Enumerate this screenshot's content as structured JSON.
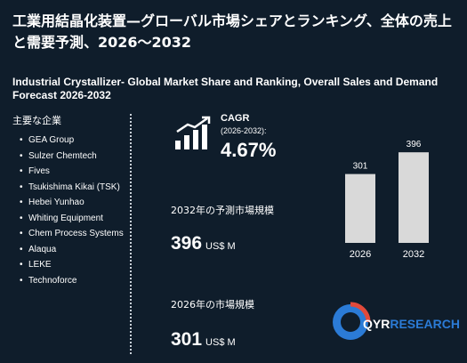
{
  "title_jp": "工業用結晶化装置—グローバル市場シェアとランキング、全体の売上と需要予測、2026〜2032",
  "title_en": "Industrial Crystallizer- Global Market Share and Ranking, Overall Sales and Demand Forecast 2026-2032",
  "players_heading": "主要な企業",
  "players": [
    "GEA Group",
    "Sulzer Chemtech",
    "Fives",
    "Tsukishima Kikai (TSK)",
    "Hebei Yunhao",
    "Whiting Equipment",
    "Chem Process Systems",
    "Alaqua",
    "LEKE",
    "Technoforce"
  ],
  "cagr": {
    "label": "CAGR",
    "period": "(2026-2032):",
    "value": "4.67%"
  },
  "forecast": {
    "label": "2032年の予測市場規模",
    "value": "396",
    "unit": "US$ M"
  },
  "current": {
    "label": "2026年の市場規模",
    "value": "301",
    "unit": "US$ M"
  },
  "logo": {
    "brand_a": "QYR",
    "brand_b": "ESEARCH"
  },
  "colors": {
    "background": "#0f1d2b",
    "bar": "#d9d9d9",
    "accent": "#2b7bd6"
  },
  "chart_data": {
    "type": "bar",
    "categories": [
      "2026",
      "2032"
    ],
    "values": [
      301,
      396
    ],
    "ylim": [
      0,
      420
    ],
    "title": "",
    "xlabel": "",
    "ylabel": ""
  }
}
